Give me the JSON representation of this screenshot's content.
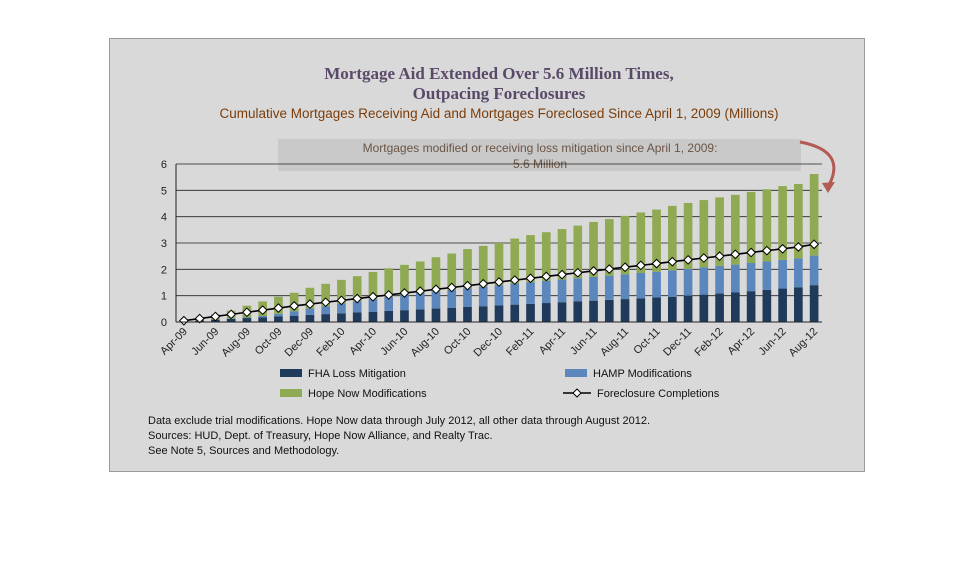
{
  "chart_data": {
    "type": "bar",
    "title_line1": "Mortgage Aid Extended Over 5.6 Million Times,",
    "title_line2": "Outpacing Foreclosures",
    "subtitle": "Cumulative Mortgages Receiving Aid and Mortgages Foreclosed Since April 1, 2009 (Millions)",
    "annotation_line1": "Mortgages modified or receiving loss mitigation since April 1, 2009:",
    "annotation_line2": "5.6 Million",
    "stacked": true,
    "ylim": [
      0,
      6
    ],
    "yticks": [
      "0",
      "1",
      "2",
      "3",
      "4",
      "5",
      "6"
    ],
    "grid": true,
    "x_tick_labels": [
      "Apr-09",
      "Jun-09",
      "Aug-09",
      "Oct-09",
      "Dec-09",
      "Feb-10",
      "Apr-10",
      "Jun-10",
      "Aug-10",
      "Oct-10",
      "Dec-10",
      "Feb-11",
      "Apr-11",
      "Jun-11",
      "Aug-11",
      "Oct-11",
      "Dec-11",
      "Feb-12",
      "Apr-12",
      "Jun-12",
      "Aug-12"
    ],
    "categories": [
      "Apr-09",
      "May-09",
      "Jun-09",
      "Jul-09",
      "Aug-09",
      "Sep-09",
      "Oct-09",
      "Nov-09",
      "Dec-09",
      "Jan-10",
      "Feb-10",
      "Mar-10",
      "Apr-10",
      "May-10",
      "Jun-10",
      "Jul-10",
      "Aug-10",
      "Sep-10",
      "Oct-10",
      "Nov-10",
      "Dec-10",
      "Jan-11",
      "Feb-11",
      "Mar-11",
      "Apr-11",
      "May-11",
      "Jun-11",
      "Jul-11",
      "Aug-11",
      "Sep-11",
      "Oct-11",
      "Nov-11",
      "Dec-11",
      "Jan-12",
      "Feb-12",
      "Mar-12",
      "Apr-12",
      "May-12",
      "Jun-12",
      "Jul-12",
      "Aug-12"
    ],
    "series": [
      {
        "name": "FHA Loss Mitigation",
        "kind": "bar",
        "color": "#1f3a5a",
        "values": [
          0.03,
          0.06,
          0.09,
          0.12,
          0.15,
          0.18,
          0.21,
          0.24,
          0.27,
          0.3,
          0.33,
          0.36,
          0.39,
          0.42,
          0.45,
          0.48,
          0.51,
          0.54,
          0.57,
          0.6,
          0.63,
          0.66,
          0.69,
          0.72,
          0.75,
          0.78,
          0.81,
          0.84,
          0.87,
          0.9,
          0.93,
          0.96,
          1.0,
          1.04,
          1.08,
          1.12,
          1.17,
          1.22,
          1.27,
          1.32,
          1.4
        ]
      },
      {
        "name": "HAMP Modifications",
        "kind": "bar",
        "color": "#5b87bd",
        "values": [
          0.0,
          0.0,
          0.0,
          0.01,
          0.02,
          0.05,
          0.1,
          0.17,
          0.24,
          0.3,
          0.37,
          0.43,
          0.49,
          0.54,
          0.58,
          0.62,
          0.65,
          0.68,
          0.71,
          0.74,
          0.77,
          0.8,
          0.82,
          0.84,
          0.86,
          0.88,
          0.9,
          0.92,
          0.94,
          0.96,
          0.98,
          1.0,
          1.02,
          1.04,
          1.05,
          1.06,
          1.07,
          1.08,
          1.09,
          1.1,
          1.12
        ]
      },
      {
        "name": "Hope Now Modifications",
        "kind": "bar",
        "color": "#8faa52",
        "values": [
          0.05,
          0.1,
          0.2,
          0.3,
          0.45,
          0.55,
          0.65,
          0.7,
          0.79,
          0.85,
          0.9,
          0.95,
          1.02,
          1.08,
          1.14,
          1.2,
          1.3,
          1.38,
          1.49,
          1.55,
          1.6,
          1.71,
          1.79,
          1.85,
          1.92,
          2.0,
          2.09,
          2.15,
          2.22,
          2.3,
          2.36,
          2.45,
          2.5,
          2.55,
          2.6,
          2.65,
          2.7,
          2.74,
          2.8,
          2.82,
          3.1
        ]
      },
      {
        "name": "Foreclosure Completions",
        "kind": "line",
        "color": "#000000",
        "values": [
          0.05,
          0.13,
          0.21,
          0.29,
          0.37,
          0.45,
          0.53,
          0.61,
          0.68,
          0.75,
          0.82,
          0.89,
          0.96,
          1.03,
          1.1,
          1.17,
          1.24,
          1.31,
          1.38,
          1.45,
          1.52,
          1.59,
          1.66,
          1.73,
          1.8,
          1.87,
          1.94,
          2.01,
          2.08,
          2.15,
          2.22,
          2.29,
          2.36,
          2.43,
          2.5,
          2.57,
          2.64,
          2.71,
          2.78,
          2.85,
          2.95
        ]
      }
    ],
    "legend": [
      {
        "name": "FHA Loss Mitigation",
        "color": "#1f3a5a",
        "kind": "bar"
      },
      {
        "name": "HAMP Modifications",
        "color": "#5b87bd",
        "kind": "bar"
      },
      {
        "name": "Hope Now Modifications",
        "color": "#8faa52",
        "kind": "bar"
      },
      {
        "name": "Foreclosure Completions",
        "color": "#000000",
        "kind": "line"
      }
    ],
    "legend_placement": "bottom",
    "notes": [
      "Data exclude trial modifications. Hope Now data through July 2012, all other data through August 2012.",
      "Sources:  HUD, Dept. of Treasury, Hope Now Alliance, and Realty Trac.",
      "See Note 5, Sources and Methodology."
    ]
  }
}
